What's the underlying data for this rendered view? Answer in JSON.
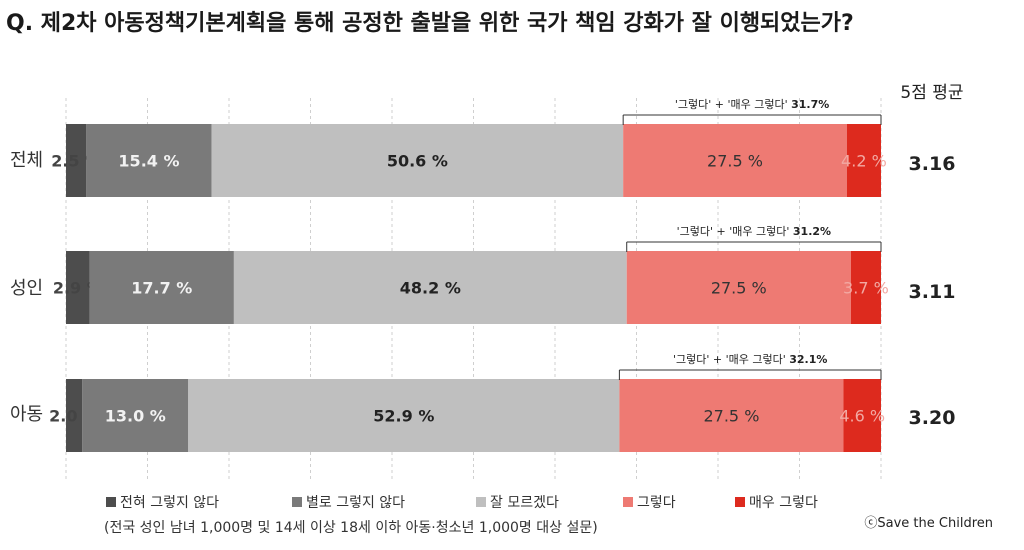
{
  "title": "Q. 제2차 아동정책기본계획을 통해 공정한 출발을 위한 국가 책임 강화가 잘 이행되었는가?",
  "avg_header": "5점 평균",
  "footnote": "(전국 성인 남녀 1,000명 및 14세 이상 18세 이하  아동·청소년 1,000명 대상 설문)",
  "credit": "ⓒSave the Children",
  "chart_data": {
    "type": "bar",
    "orientation": "horizontal",
    "stacked": true,
    "normalized": true,
    "grid": true,
    "legend_position": "bottom",
    "categories": [
      "전체",
      "성인",
      "아동"
    ],
    "series": [
      {
        "name": "전혀 그렇지 않다",
        "color": "#4d4d4d",
        "values": [
          2.5,
          2.9,
          2.0
        ],
        "labels": [
          "2.5 %",
          "2.9 %",
          "2.0 %"
        ],
        "label_color": "#444444",
        "label_weight": "bold"
      },
      {
        "name": "별로 그렇지 않다",
        "color": "#7a7a7a",
        "values": [
          15.4,
          17.7,
          13.0
        ],
        "labels": [
          "15.4 %",
          "17.7 %",
          "13.0 %"
        ],
        "label_color": "#f2f2f2",
        "label_weight": "bold"
      },
      {
        "name": "잘 모르겠다",
        "color": "#bfbfbf",
        "values": [
          50.6,
          48.2,
          52.9
        ],
        "labels": [
          "50.6 %",
          "48.2 %",
          "52.9 %"
        ],
        "label_color": "#222222",
        "label_weight": "bold"
      },
      {
        "name": "그렇다",
        "color": "#ee7a73",
        "values": [
          27.5,
          27.5,
          27.5
        ],
        "labels": [
          "27.5 %",
          "27.5 %",
          "27.5 %"
        ],
        "label_color": "#333333",
        "label_weight": "normal"
      },
      {
        "name": "매우 그렇다",
        "color": "#dd2a1e",
        "values": [
          4.2,
          3.7,
          4.6
        ],
        "labels": [
          "4.2 %",
          "3.7 %",
          "4.6 %"
        ],
        "label_color": "#f2a9a3",
        "label_weight": "normal"
      }
    ],
    "averages": [
      "3.16",
      "3.11",
      "3.20"
    ],
    "annotations": [
      {
        "prefix": "'그렇다' + '매우 그렇다'",
        "value": "31.7%"
      },
      {
        "prefix": "'그렇다' + '매우 그렇다'",
        "value": "31.2%"
      },
      {
        "prefix": "'그렇다' + '매우 그렇다'",
        "value": "32.1%"
      }
    ]
  }
}
